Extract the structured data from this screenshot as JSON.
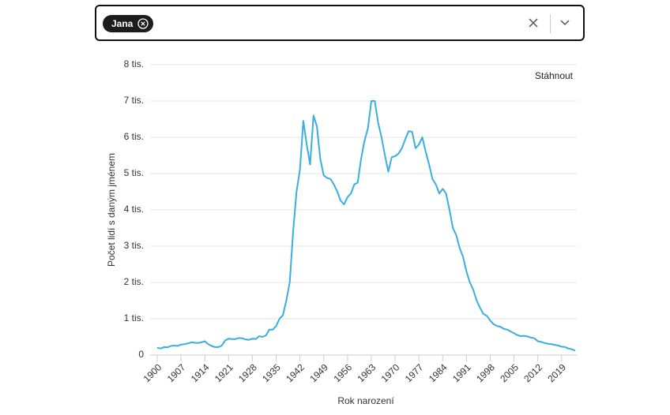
{
  "chip": "Jana",
  "download": "Stáhnout",
  "chart_data": {
    "type": "line",
    "x_label": "Rok narození",
    "y_label": "Počet lidí s daným jménem",
    "color": "#3aaee0",
    "grid": true,
    "xlim": [
      1900,
      2023
    ],
    "xticks": [
      1900,
      1907,
      1914,
      1921,
      1928,
      1935,
      1942,
      1949,
      1956,
      1963,
      1970,
      1977,
      1984,
      1991,
      1998,
      2005,
      2012,
      2019
    ],
    "ylim": [
      0,
      8000
    ],
    "yticks": [
      0,
      {
        "value": 1000,
        "label": "1 tis."
      },
      {
        "value": 2000,
        "label": "2 tis."
      },
      {
        "value": 3000,
        "label": "3 tis."
      },
      {
        "value": 4000,
        "label": "4 tis."
      },
      {
        "value": 5000,
        "label": "5 tis."
      },
      {
        "value": 6000,
        "label": "6 tis."
      },
      {
        "value": 7000,
        "label": "7 tis."
      },
      {
        "value": 8000,
        "label": "8 tis."
      }
    ],
    "x": [
      1900,
      1901,
      1902,
      1903,
      1904,
      1905,
      1906,
      1907,
      1908,
      1909,
      1910,
      1911,
      1912,
      1913,
      1914,
      1915,
      1916,
      1917,
      1918,
      1919,
      1920,
      1921,
      1922,
      1923,
      1924,
      1925,
      1926,
      1927,
      1928,
      1929,
      1930,
      1931,
      1932,
      1933,
      1934,
      1935,
      1936,
      1937,
      1938,
      1939,
      1940,
      1941,
      1942,
      1943,
      1944,
      1945,
      1946,
      1947,
      1948,
      1949,
      1950,
      1951,
      1952,
      1953,
      1954,
      1955,
      1956,
      1957,
      1958,
      1959,
      1960,
      1961,
      1962,
      1963,
      1964,
      1965,
      1966,
      1967,
      1968,
      1969,
      1970,
      1971,
      1972,
      1973,
      1974,
      1975,
      1976,
      1977,
      1978,
      1979,
      1980,
      1981,
      1982,
      1983,
      1984,
      1985,
      1986,
      1987,
      1988,
      1989,
      1990,
      1991,
      1992,
      1993,
      1994,
      1995,
      1996,
      1997,
      1998,
      1999,
      2000,
      2001,
      2002,
      2003,
      2004,
      2005,
      2006,
      2007,
      2008,
      2009,
      2010,
      2011,
      2012,
      2013,
      2014,
      2015,
      2016,
      2017,
      2018,
      2019,
      2020,
      2021,
      2022,
      2023
    ],
    "values": [
      200,
      180,
      220,
      210,
      250,
      260,
      250,
      290,
      300,
      320,
      350,
      340,
      330,
      350,
      380,
      300,
      250,
      220,
      220,
      260,
      400,
      450,
      440,
      440,
      470,
      460,
      430,
      420,
      450,
      440,
      520,
      500,
      540,
      700,
      700,
      800,
      1000,
      1100,
      1500,
      2000,
      3400,
      4500,
      5100,
      6450,
      5800,
      5250,
      6600,
      6300,
      5400,
      4950,
      4880,
      4850,
      4700,
      4500,
      4250,
      4150,
      4350,
      4450,
      4700,
      4750,
      5400,
      5900,
      6250,
      7000,
      7000,
      6400,
      6000,
      5500,
      5050,
      5450,
      5480,
      5550,
      5700,
      5950,
      6170,
      6150,
      5700,
      5800,
      6000,
      5600,
      5250,
      4850,
      4700,
      4450,
      4580,
      4450,
      4000,
      3500,
      3300,
      2950,
      2700,
      2300,
      2000,
      1800,
      1500,
      1300,
      1130,
      1080,
      950,
      850,
      800,
      780,
      720,
      700,
      650,
      600,
      550,
      520,
      530,
      510,
      480,
      460,
      380,
      360,
      330,
      310,
      300,
      280,
      260,
      230,
      220,
      180,
      160,
      120
    ]
  }
}
